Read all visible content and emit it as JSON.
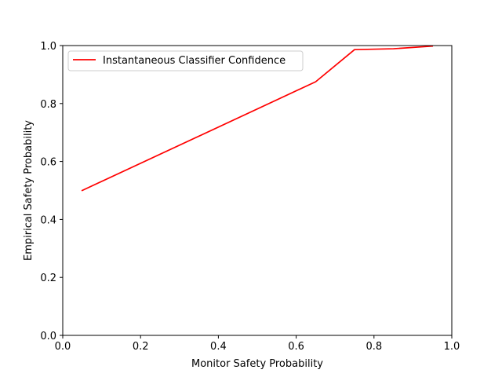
{
  "chart_data": {
    "type": "line",
    "title": "",
    "xlabel": "Monitor Safety Probability",
    "ylabel": "Empirical Safety Probability",
    "xlim": [
      0.0,
      1.0
    ],
    "ylim": [
      0.0,
      1.0
    ],
    "xticks": [
      "0.0",
      "0.2",
      "0.4",
      "0.6",
      "0.8",
      "1.0"
    ],
    "yticks": [
      "0.0",
      "0.2",
      "0.4",
      "0.6",
      "0.8",
      "1.0"
    ],
    "grid": false,
    "legend_position": "upper-left",
    "series": [
      {
        "name": "Instantaneous Classifier Confidence",
        "color": "#ff0000",
        "x": [
          0.05,
          0.65,
          0.75,
          0.85,
          0.95
        ],
        "y": [
          0.5,
          0.875,
          0.986,
          0.989,
          0.998
        ]
      }
    ]
  }
}
